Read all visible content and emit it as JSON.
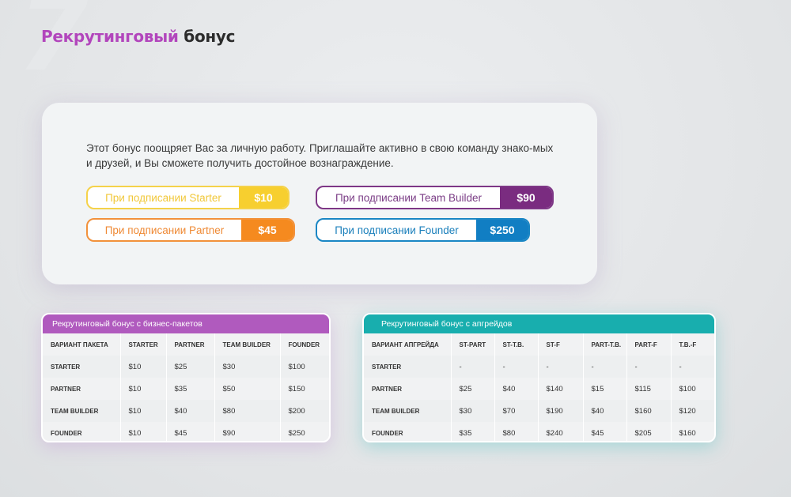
{
  "page": {
    "number": "7",
    "title_accent": "Рекрутинговый",
    "title_rest": "бонус"
  },
  "intro": "Этот бонус поощряет Вас за личную работу. Приглашайте активно в свою команду знако-мых и друзей, и Вы сможете получить достойное вознаграждение.",
  "bonuses": {
    "starter": {
      "label": "При подписании Starter",
      "value": "$10",
      "color": "#f7cf2f"
    },
    "partner": {
      "label": "При подписании Partner",
      "value": "$45",
      "color": "#f58a1f"
    },
    "team_builder": {
      "label": "При подписании Team Builder",
      "value": "$90",
      "color": "#7a2c80"
    },
    "founder": {
      "label": "При подписании Founder",
      "value": "$250",
      "color": "#117ec3"
    }
  },
  "packages_table": {
    "title": "Рекрутинговый бонус с бизнес-пакетов",
    "header_color": "#b05abe",
    "columns": [
      "ВАРИАНТ ПАКЕТА",
      "STARTER",
      "PARTNER",
      "TEAM BUILDER",
      "FOUNDER"
    ],
    "rows": [
      [
        "STARTER",
        "$10",
        "$25",
        "$30",
        "$100"
      ],
      [
        "PARTNER",
        "$10",
        "$35",
        "$50",
        "$150"
      ],
      [
        "TEAM BUILDER",
        "$10",
        "$40",
        "$80",
        "$200"
      ],
      [
        "FOUNDER",
        "$10",
        "$45",
        "$90",
        "$250"
      ]
    ]
  },
  "upgrades_table": {
    "title": "Рекрутинговый бонус с апгрейдов",
    "header_color": "#18aeae",
    "columns": [
      "ВАРИАНТ АПГРЕЙДА",
      "ST-PART",
      "ST-T.B.",
      "ST-F",
      "PART-T.B.",
      "PART-F",
      "T.B.-F"
    ],
    "rows": [
      [
        "STARTER",
        "-",
        "-",
        "-",
        "-",
        "-",
        "-"
      ],
      [
        "PARTNER",
        "$25",
        "$40",
        "$140",
        "$15",
        "$115",
        "$100"
      ],
      [
        "TEAM BUILDER",
        "$30",
        "$70",
        "$190",
        "$40",
        "$160",
        "$120"
      ],
      [
        "FOUNDER",
        "$35",
        "$80",
        "$240",
        "$45",
        "$205",
        "$160"
      ]
    ]
  }
}
